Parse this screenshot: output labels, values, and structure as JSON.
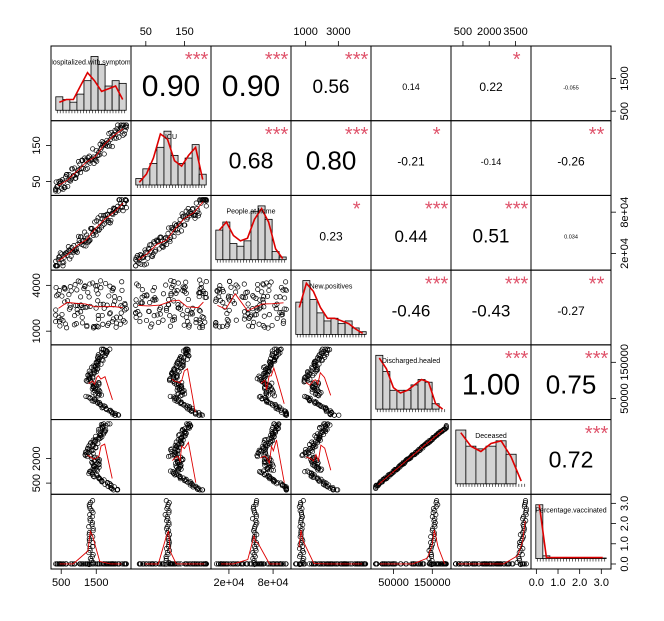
{
  "chart_data": {
    "type": "scatter",
    "kind": "correlation-matrix",
    "variables": [
      {
        "label": "Hospitalized.with.symptoms",
        "range": [
          300,
          2400
        ],
        "hist": [
          0.25,
          0.2,
          0.15,
          0.3,
          0.55,
          1.0,
          0.85,
          0.45,
          0.55,
          0.5
        ],
        "density": [
          0.15,
          0.2,
          0.2,
          0.45,
          0.7,
          0.55,
          0.35,
          0.4,
          0.45,
          0.2
        ]
      },
      {
        "label": "ICU",
        "range": [
          20,
          210
        ],
        "hist": [
          0.12,
          0.3,
          0.4,
          0.7,
          1.0,
          0.55,
          0.4,
          0.5,
          0.75,
          0.2
        ],
        "density": [
          0.05,
          0.2,
          0.5,
          0.95,
          0.85,
          0.45,
          0.35,
          0.55,
          0.7,
          0.1
        ]
      },
      {
        "label": "People.at.home",
        "range": [
          0,
          100000
        ],
        "hist": [
          0.55,
          0.7,
          0.3,
          0.25,
          0.35,
          0.9,
          1.0,
          0.75,
          0.15,
          0.05
        ],
        "density": [
          0.55,
          0.7,
          0.45,
          0.35,
          0.4,
          0.75,
          0.95,
          0.7,
          0.2,
          0.02
        ]
      },
      {
        "label": "New.positives",
        "range": [
          300,
          4800
        ],
        "hist": [
          0.6,
          1.0,
          0.65,
          0.4,
          0.25,
          0.3,
          0.2,
          0.25,
          0.12,
          0.05
        ],
        "density": [
          0.5,
          0.95,
          0.8,
          0.5,
          0.3,
          0.3,
          0.25,
          0.2,
          0.1,
          0.02
        ]
      },
      {
        "label": "Discharged.healed",
        "range": [
          0,
          190000
        ],
        "hist": [
          1.0,
          0.7,
          0.35,
          0.35,
          0.35,
          0.45,
          0.55,
          0.5,
          0.1,
          0.0
        ],
        "density": [
          0.95,
          0.75,
          0.4,
          0.3,
          0.35,
          0.45,
          0.55,
          0.5,
          0.1,
          0.0
        ]
      },
      {
        "label": "Deceased",
        "range": [
          0,
          4200
        ],
        "hist": [
          1.0,
          0.7,
          0.65,
          0.7,
          0.8,
          0.55,
          0.0
        ],
        "density": [
          0.95,
          0.7,
          0.6,
          0.75,
          0.8,
          0.5,
          0.05
        ]
      },
      {
        "label": "Percentage.vaccinated",
        "range": [
          -0.1,
          3.3
        ],
        "hist": [
          1.0,
          0.05,
          0.02,
          0.02,
          0.01,
          0.01,
          0.01,
          0.01,
          0.01,
          0.01
        ],
        "density": [
          1.0,
          0.02,
          0.02,
          0.02,
          0.02,
          0.02,
          0.02,
          0.02,
          0.02,
          0.02
        ]
      }
    ],
    "correlations": [
      {
        "row": 0,
        "col": 1,
        "r": "0.90",
        "stars": "***"
      },
      {
        "row": 0,
        "col": 2,
        "r": "0.90",
        "stars": "***"
      },
      {
        "row": 0,
        "col": 3,
        "r": "0.56",
        "stars": "***"
      },
      {
        "row": 0,
        "col": 4,
        "r": "0.14",
        "stars": ""
      },
      {
        "row": 0,
        "col": 5,
        "r": "0.22",
        "stars": "*"
      },
      {
        "row": 0,
        "col": 6,
        "r": "-0.055",
        "stars": ""
      },
      {
        "row": 1,
        "col": 2,
        "r": "0.68",
        "stars": "***"
      },
      {
        "row": 1,
        "col": 3,
        "r": "0.80",
        "stars": "***"
      },
      {
        "row": 1,
        "col": 4,
        "r": "-0.21",
        "stars": "*"
      },
      {
        "row": 1,
        "col": 5,
        "r": "-0.14",
        "stars": ""
      },
      {
        "row": 1,
        "col": 6,
        "r": "-0.26",
        "stars": "**"
      },
      {
        "row": 2,
        "col": 3,
        "r": "0.23",
        "stars": "*"
      },
      {
        "row": 2,
        "col": 4,
        "r": "0.44",
        "stars": "***"
      },
      {
        "row": 2,
        "col": 5,
        "r": "0.51",
        "stars": "***"
      },
      {
        "row": 2,
        "col": 6,
        "r": "0.034",
        "stars": ""
      },
      {
        "row": 3,
        "col": 4,
        "r": "-0.46",
        "stars": "***"
      },
      {
        "row": 3,
        "col": 5,
        "r": "-0.43",
        "stars": "***"
      },
      {
        "row": 3,
        "col": 6,
        "r": "-0.27",
        "stars": "**"
      },
      {
        "row": 4,
        "col": 5,
        "r": "1.00",
        "stars": "***"
      },
      {
        "row": 4,
        "col": 6,
        "r": "0.75",
        "stars": "***"
      },
      {
        "row": 5,
        "col": 6,
        "r": "0.72",
        "stars": "***"
      }
    ],
    "axis_ticks": {
      "top": [
        {
          "col": 1,
          "labels": [
            "50",
            "150"
          ],
          "values": [
            50,
            150
          ]
        },
        {
          "col": 3,
          "labels": [
            "1000",
            "3000"
          ],
          "values": [
            1000,
            3000
          ]
        },
        {
          "col": 5,
          "labels": [
            "500",
            "2000",
            "3500"
          ],
          "values": [
            500,
            2000,
            3500
          ]
        }
      ],
      "bottom": [
        {
          "col": 0,
          "labels": [
            "500",
            "1500"
          ],
          "values": [
            500,
            1500
          ]
        },
        {
          "col": 2,
          "labels": [
            "2e+04",
            "8e+04"
          ],
          "values": [
            20000,
            80000
          ]
        },
        {
          "col": 4,
          "labels": [
            "50000",
            "150000"
          ],
          "values": [
            50000,
            150000
          ]
        },
        {
          "col": 6,
          "labels": [
            "0.0",
            "1.0",
            "2.0",
            "3.0"
          ],
          "values": [
            0,
            1,
            2,
            3
          ]
        }
      ],
      "left": [
        {
          "row": 1,
          "labels": [
            "50",
            "150"
          ],
          "values": [
            50,
            150
          ]
        },
        {
          "row": 3,
          "labels": [
            "1000",
            "4000"
          ],
          "values": [
            1000,
            4000
          ]
        },
        {
          "row": 5,
          "labels": [
            "500",
            "2000"
          ],
          "values": [
            500,
            2000
          ]
        }
      ],
      "right": [
        {
          "row": 0,
          "labels": [
            "500",
            "1500"
          ],
          "values": [
            500,
            1500
          ]
        },
        {
          "row": 2,
          "labels": [
            "2e+04",
            "8e+04"
          ],
          "values": [
            20000,
            80000
          ]
        },
        {
          "row": 4,
          "labels": [
            "50000",
            "150000"
          ],
          "values": [
            50000,
            150000
          ]
        },
        {
          "row": 6,
          "labels": [
            "0.0",
            "1.0",
            "2.0",
            "3.0"
          ],
          "values": [
            0,
            1,
            2,
            3
          ]
        }
      ]
    },
    "colors": {
      "stars": "#df536b",
      "density": "#dd0000",
      "hist_fill": "#d3d3d3",
      "axis": "#000000",
      "points": "#000000",
      "smooth": "#dd0000"
    }
  }
}
